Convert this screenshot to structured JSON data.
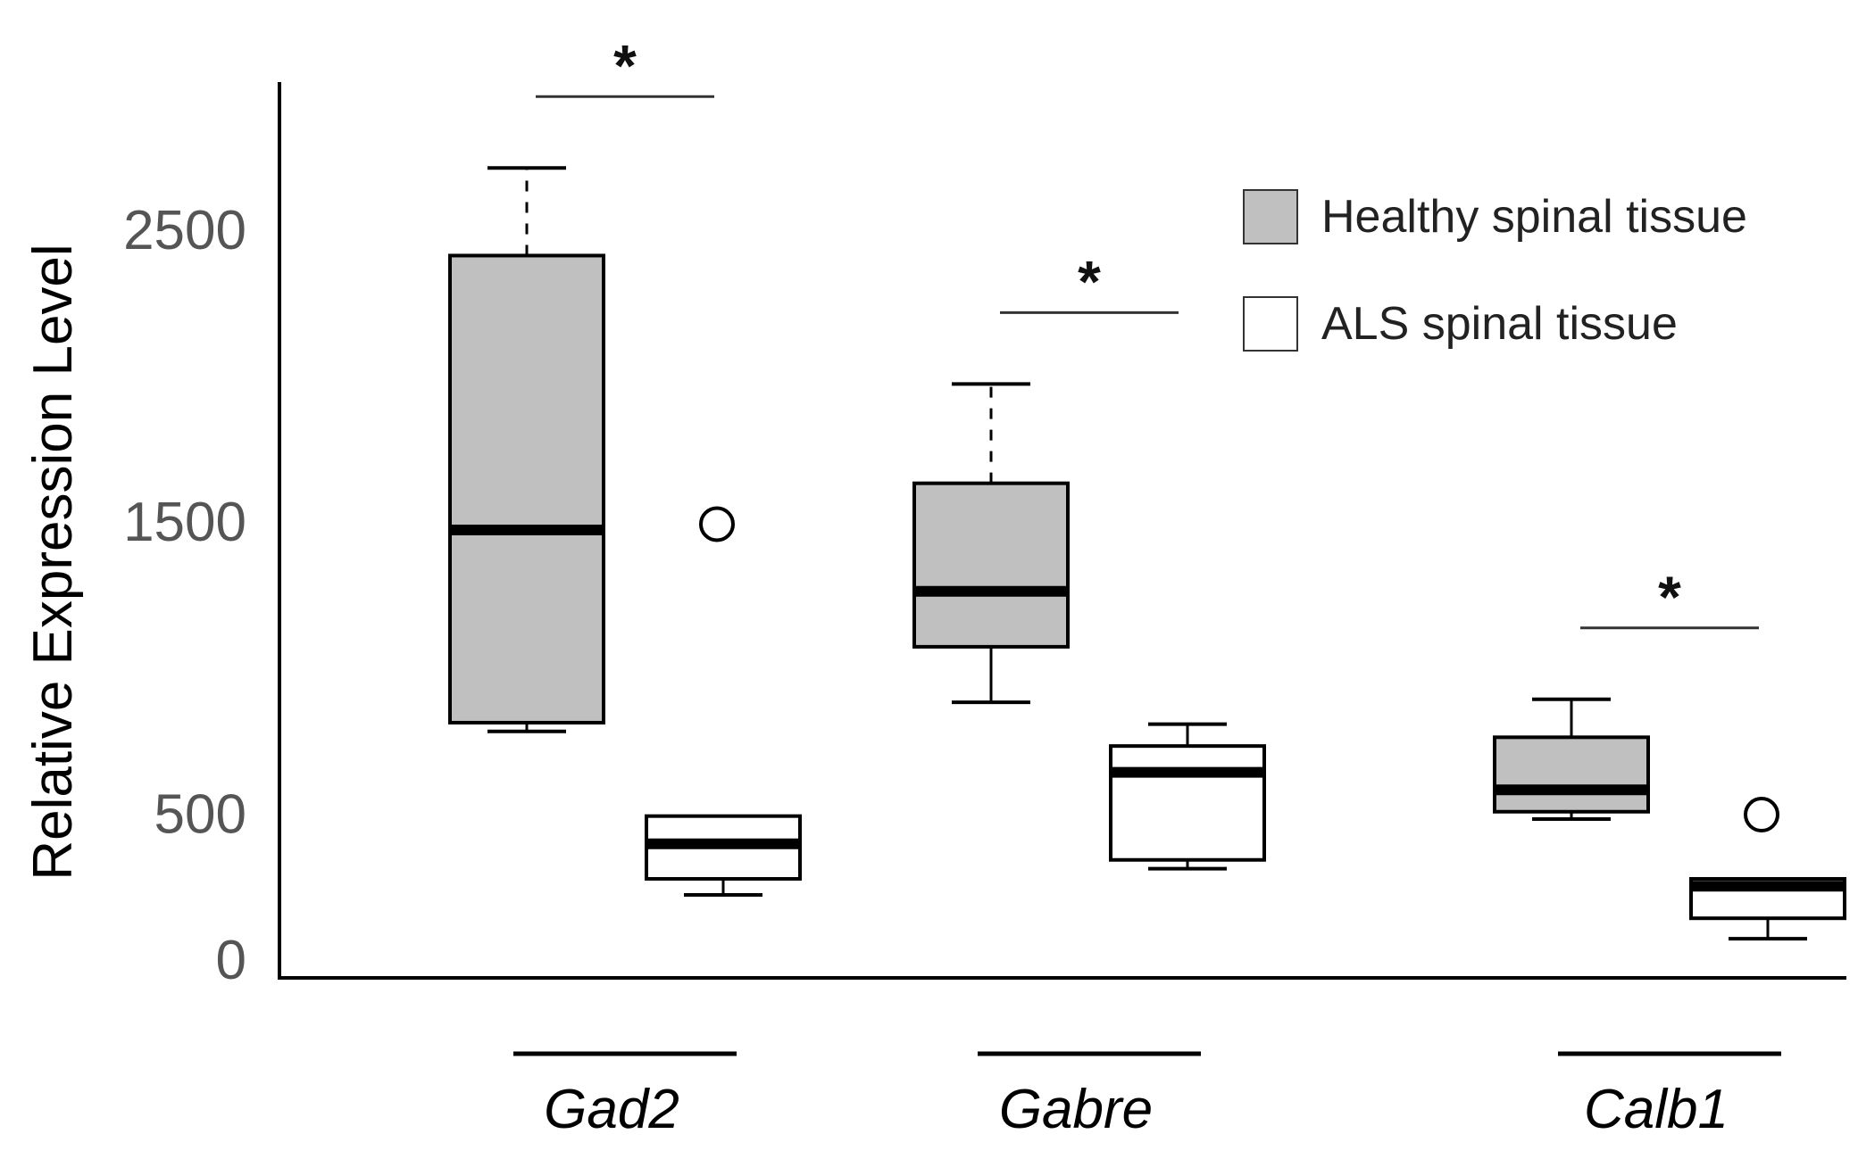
{
  "chart_data": {
    "type": "boxplot",
    "ylabel": "Relative Expression Level",
    "ylim": [
      0,
      3000
    ],
    "yticks": [
      {
        "value": 0,
        "label": "0"
      },
      {
        "value": 500,
        "label": "500"
      },
      {
        "value": 1500,
        "label": "1500"
      },
      {
        "value": 2500,
        "label": "2500"
      }
    ],
    "series": [
      {
        "name": "Healthy spinal tissue",
        "key": "healthy",
        "fill": "#c0c0c0"
      },
      {
        "name": "ALS spinal tissue",
        "key": "als",
        "fill": "#ffffff"
      }
    ],
    "groups": [
      {
        "label": "Gad2",
        "significance": "*",
        "boxes": [
          {
            "series": "healthy",
            "whisker_low": 780,
            "q1": 810,
            "median": 1470,
            "q3": 2410,
            "whisker_high": 2710,
            "outliers": [],
            "whisker_style_high": "dashed"
          },
          {
            "series": "als",
            "whisker_low": 220,
            "q1": 275,
            "median": 395,
            "q3": 490,
            "whisker_high": 490,
            "outliers": [
              1490
            ]
          }
        ]
      },
      {
        "label": "Gabre",
        "significance": "*",
        "boxes": [
          {
            "series": "healthy",
            "whisker_low": 880,
            "q1": 1070,
            "median": 1260,
            "q3": 1630,
            "whisker_high": 1970,
            "outliers": [],
            "whisker_style_high": "dashed"
          },
          {
            "series": "als",
            "whisker_low": 310,
            "q1": 340,
            "median": 640,
            "q3": 730,
            "whisker_high": 805,
            "outliers": []
          }
        ]
      },
      {
        "label": "Calb1",
        "significance": "*",
        "boxes": [
          {
            "series": "healthy",
            "whisker_low": 480,
            "q1": 505,
            "median": 580,
            "q3": 760,
            "whisker_high": 890,
            "outliers": []
          },
          {
            "series": "als",
            "whisker_low": 70,
            "q1": 140,
            "median": 250,
            "q3": 275,
            "whisker_high": 275,
            "outliers": [
              495
            ]
          }
        ]
      }
    ],
    "legend_position": "top-right",
    "grid": false
  }
}
